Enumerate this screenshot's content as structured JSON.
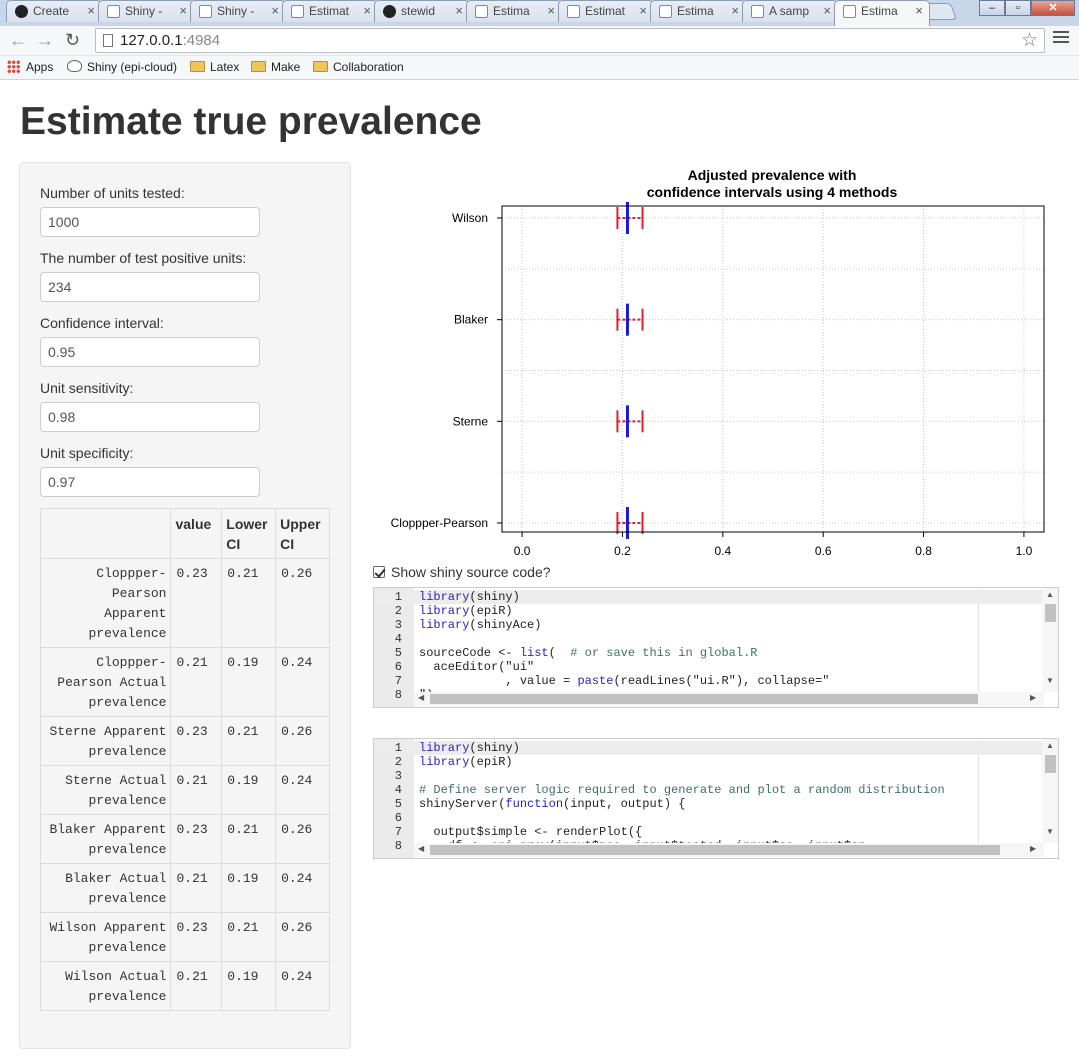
{
  "browser": {
    "tabs": [
      {
        "label": "Create",
        "icon": "github-icon"
      },
      {
        "label": "Shiny -",
        "icon": "page-icon"
      },
      {
        "label": "Shiny -",
        "icon": "page-icon"
      },
      {
        "label": "Estimat",
        "icon": "page-icon"
      },
      {
        "label": "stewid",
        "icon": "github-icon"
      },
      {
        "label": "Estima",
        "icon": "page-icon"
      },
      {
        "label": "Estimat",
        "icon": "page-icon"
      },
      {
        "label": "Estima",
        "icon": "page-icon"
      },
      {
        "label": "A samp",
        "icon": "page-icon"
      },
      {
        "label": "Estima",
        "icon": "page-icon",
        "active": true
      }
    ],
    "url_host": "127.0.0.1",
    "url_port": ":4984",
    "bookmarks": [
      {
        "label": "Apps",
        "icon": "apps-icon"
      },
      {
        "label": "Shiny (epi-cloud)",
        "icon": "cloud-icon"
      },
      {
        "label": "Latex",
        "icon": "folder-icon"
      },
      {
        "label": "Make",
        "icon": "folder-icon"
      },
      {
        "label": "Collaboration",
        "icon": "folder-icon"
      }
    ]
  },
  "page": {
    "title": "Estimate true prevalence"
  },
  "inputs": [
    {
      "label": "Number of units tested:",
      "value": "1000"
    },
    {
      "label": "The number of test positive units:",
      "value": "234"
    },
    {
      "label": "Confidence interval:",
      "value": "0.95"
    },
    {
      "label": "Unit sensitivity:",
      "value": "0.98"
    },
    {
      "label": "Unit specificity:",
      "value": "0.97"
    }
  ],
  "table": {
    "headers": [
      "",
      "value",
      "Lower CI",
      "Upper CI"
    ],
    "rows": [
      {
        "name": "Cloppper-Pearson Apparent prevalence",
        "value": "0.23",
        "lower": "0.21",
        "upper": "0.26"
      },
      {
        "name": "Cloppper-Pearson Actual prevalence",
        "value": "0.21",
        "lower": "0.19",
        "upper": "0.24"
      },
      {
        "name": "Sterne Apparent prevalence",
        "value": "0.23",
        "lower": "0.21",
        "upper": "0.26"
      },
      {
        "name": "Sterne Actual prevalence",
        "value": "0.21",
        "lower": "0.19",
        "upper": "0.24"
      },
      {
        "name": "Blaker Apparent prevalence",
        "value": "0.23",
        "lower": "0.21",
        "upper": "0.26"
      },
      {
        "name": "Blaker Actual prevalence",
        "value": "0.21",
        "lower": "0.19",
        "upper": "0.24"
      },
      {
        "name": "Wilson Apparent prevalence",
        "value": "0.23",
        "lower": "0.21",
        "upper": "0.26"
      },
      {
        "name": "Wilson Actual prevalence",
        "value": "0.21",
        "lower": "0.19",
        "upper": "0.24"
      }
    ]
  },
  "chart_data": {
    "type": "scatter",
    "title": "Adjusted prevalence with\nconfidence intervals using 4 methods",
    "categories": [
      "Cloppper-Pearson",
      "Sterne",
      "Blaker",
      "Wilson"
    ],
    "series": [
      {
        "name": "",
        "values": [
          0.21,
          0.21,
          0.21,
          0.21
        ],
        "lower": [
          0.19,
          0.19,
          0.19,
          0.19
        ],
        "upper": [
          0.24,
          0.24,
          0.24,
          0.24
        ]
      }
    ],
    "xlim": [
      -0.04,
      1.04
    ],
    "xticks": [
      "0.0",
      "0.2",
      "0.4",
      "0.6",
      "0.8",
      "1.0"
    ],
    "grid": true,
    "colors": {
      "point": "#1a1ad6",
      "interval": "#e0202a"
    }
  },
  "show_code": {
    "label": "Show shiny source code?",
    "checked": true
  },
  "editors": [
    {
      "lines": [
        {
          "n": "1",
          "t": "library(shiny)"
        },
        {
          "n": "2",
          "t": "library(epiR)"
        },
        {
          "n": "3",
          "t": "library(shinyAce)"
        },
        {
          "n": "4",
          "t": ""
        },
        {
          "n": "5",
          "t": "sourceCode <- list(  # or save this in global.R"
        },
        {
          "n": "6",
          "t": "  aceEditor(\"ui\""
        },
        {
          "n": "7",
          "t": "            , value = paste(readLines(\"ui.R\"), collapse=\""
        },
        {
          "n": "8",
          "t": "\")"
        }
      ]
    },
    {
      "lines": [
        {
          "n": "1",
          "t": "library(shiny)"
        },
        {
          "n": "2",
          "t": "library(epiR)"
        },
        {
          "n": "3",
          "t": ""
        },
        {
          "n": "4",
          "t": "# Define server logic required to generate and plot a random distribution"
        },
        {
          "n": "5",
          "t": "shinyServer(function(input, output) {"
        },
        {
          "n": "6",
          "t": ""
        },
        {
          "n": "7",
          "t": "  output$simple <- renderPlot({"
        },
        {
          "n": "8",
          "t": "    df <- epi.prev(input$pos, input$tested, input$se, input$sp"
        }
      ]
    }
  ]
}
